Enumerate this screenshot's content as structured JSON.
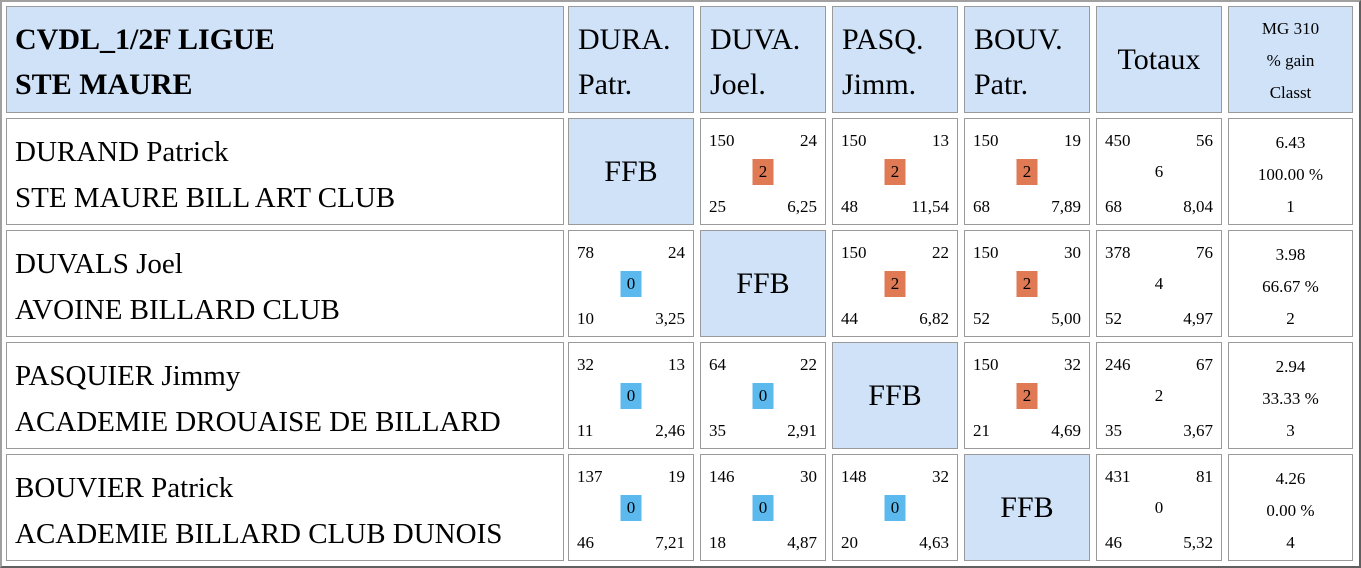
{
  "header": {
    "title_line1": "CVDL_1/2F LIGUE",
    "title_line2": "STE MAURE",
    "columns": [
      {
        "line1": "DURA.",
        "line2": "Patr."
      },
      {
        "line1": "DUVA.",
        "line2": "Joel."
      },
      {
        "line1": "PASQ.",
        "line2": "Jimm."
      },
      {
        "line1": "BOUV.",
        "line2": "Patr."
      }
    ],
    "totals_label": "Totaux",
    "mg_label": "MG 310",
    "gain_label": "% gain",
    "classt_label": "Classt"
  },
  "self_label": "FFB",
  "rows": [
    {
      "name": "DURAND Patrick",
      "club": "STE MAURE BILL ART CLUB",
      "cells": [
        null,
        {
          "points": "150",
          "reprises": "24",
          "result": "2",
          "serie": "25",
          "moyenne": "6,25"
        },
        {
          "points": "150",
          "reprises": "13",
          "result": "2",
          "serie": "48",
          "moyenne": "11,54"
        },
        {
          "points": "150",
          "reprises": "19",
          "result": "2",
          "serie": "68",
          "moyenne": "7,89"
        }
      ],
      "totals": {
        "points": "450",
        "reprises": "56",
        "match_points": "6",
        "serie": "68",
        "moyenne": "8,04"
      },
      "summary": {
        "mg": "6.43",
        "gain": "100.00 %",
        "rank": "1"
      }
    },
    {
      "name": "DUVALS Joel",
      "club": "AVOINE BILLARD CLUB",
      "cells": [
        {
          "points": "78",
          "reprises": "24",
          "result": "0",
          "serie": "10",
          "moyenne": "3,25"
        },
        null,
        {
          "points": "150",
          "reprises": "22",
          "result": "2",
          "serie": "44",
          "moyenne": "6,82"
        },
        {
          "points": "150",
          "reprises": "30",
          "result": "2",
          "serie": "52",
          "moyenne": "5,00"
        }
      ],
      "totals": {
        "points": "378",
        "reprises": "76",
        "match_points": "4",
        "serie": "52",
        "moyenne": "4,97"
      },
      "summary": {
        "mg": "3.98",
        "gain": "66.67 %",
        "rank": "2"
      }
    },
    {
      "name": "PASQUIER Jimmy",
      "club": "ACADEMIE DROUAISE DE BILLARD",
      "cells": [
        {
          "points": "32",
          "reprises": "13",
          "result": "0",
          "serie": "11",
          "moyenne": "2,46"
        },
        {
          "points": "64",
          "reprises": "22",
          "result": "0",
          "serie": "35",
          "moyenne": "2,91"
        },
        null,
        {
          "points": "150",
          "reprises": "32",
          "result": "2",
          "serie": "21",
          "moyenne": "4,69"
        }
      ],
      "totals": {
        "points": "246",
        "reprises": "67",
        "match_points": "2",
        "serie": "35",
        "moyenne": "3,67"
      },
      "summary": {
        "mg": "2.94",
        "gain": "33.33 %",
        "rank": "3"
      }
    },
    {
      "name": "BOUVIER Patrick",
      "club": "ACADEMIE BILLARD CLUB DUNOIS",
      "cells": [
        {
          "points": "137",
          "reprises": "19",
          "result": "0",
          "serie": "46",
          "moyenne": "7,21"
        },
        {
          "points": "146",
          "reprises": "30",
          "result": "0",
          "serie": "18",
          "moyenne": "4,87"
        },
        {
          "points": "148",
          "reprises": "32",
          "result": "0",
          "serie": "20",
          "moyenne": "4,63"
        },
        null
      ],
      "totals": {
        "points": "431",
        "reprises": "81",
        "match_points": "0",
        "serie": "46",
        "moyenne": "5,32"
      },
      "summary": {
        "mg": "4.26",
        "gain": "0.00 %",
        "rank": "4"
      }
    }
  ],
  "colors": {
    "header_bg": "#cfe2f8",
    "win_badge": "#e07a54",
    "loss_badge": "#5cb9ee",
    "border": "#9a9a9a"
  }
}
